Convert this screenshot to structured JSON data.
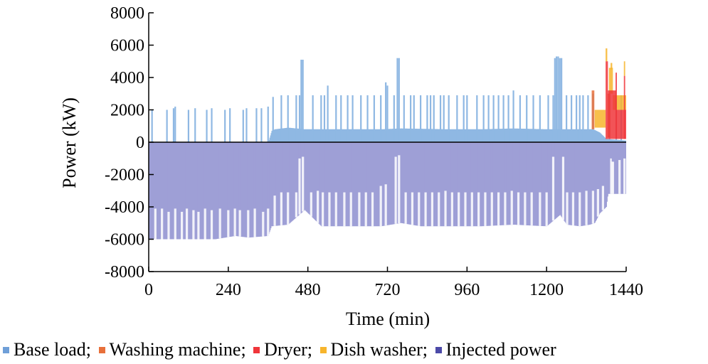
{
  "chart_data": {
    "type": "bar",
    "xlabel": "Time (min)",
    "ylabel": "Power (kW)",
    "xlim": [
      0,
      1440
    ],
    "ylim": [
      -8000,
      8000
    ],
    "xticks": [
      "0",
      "240",
      "480",
      "720",
      "960",
      "1200",
      "1440"
    ],
    "yticks": [
      "8000",
      "6000",
      "4000",
      "2000",
      "0",
      "-2000",
      "-4000",
      "-6000",
      "-8000"
    ],
    "legend": {
      "placement": "bottom",
      "separator": ";"
    },
    "colors": {
      "Base load": "#8fb8e3",
      "Washing machine": "#e8703a",
      "Dryer": "#f0353a",
      "Dish washer": "#f7b52c",
      "Injected power": "#9e9fd6"
    },
    "legend_swatch_colors": {
      "Base load": "#6f9fd8",
      "Washing machine": "#e8703a",
      "Dryer": "#f0353a",
      "Dish washer": "#f7b52c",
      "Injected power": "#4c4aa8"
    },
    "series": [
      {
        "name": "Base load",
        "base": [
          [
            0,
            0
          ],
          [
            360,
            0
          ],
          [
            370,
            700
          ],
          [
            380,
            800
          ],
          [
            420,
            900
          ],
          [
            470,
            800
          ],
          [
            700,
            800
          ],
          [
            760,
            850
          ],
          [
            900,
            800
          ],
          [
            1000,
            800
          ],
          [
            1100,
            850
          ],
          [
            1200,
            800
          ],
          [
            1300,
            800
          ],
          [
            1340,
            800
          ],
          [
            1360,
            600
          ],
          [
            1380,
            200
          ],
          [
            1440,
            100
          ]
        ],
        "spikes": [
          [
            10,
            2000
          ],
          [
            55,
            2000
          ],
          [
            75,
            2100
          ],
          [
            80,
            2200
          ],
          [
            120,
            2000
          ],
          [
            140,
            2100
          ],
          [
            175,
            2000
          ],
          [
            190,
            2100
          ],
          [
            230,
            2000
          ],
          [
            245,
            2100
          ],
          [
            285,
            2000
          ],
          [
            295,
            2100
          ],
          [
            325,
            2100
          ],
          [
            340,
            2100
          ],
          [
            360,
            2200
          ],
          [
            375,
            2800
          ],
          [
            400,
            2900
          ],
          [
            420,
            2900
          ],
          [
            445,
            2900
          ],
          [
            455,
            2900
          ],
          [
            460,
            5100
          ],
          [
            465,
            5100
          ],
          [
            495,
            2900
          ],
          [
            520,
            2900
          ],
          [
            530,
            2900
          ],
          [
            540,
            3500
          ],
          [
            565,
            2900
          ],
          [
            580,
            2900
          ],
          [
            600,
            2900
          ],
          [
            615,
            2900
          ],
          [
            640,
            2900
          ],
          [
            660,
            2900
          ],
          [
            680,
            2900
          ],
          [
            700,
            2900
          ],
          [
            715,
            3700
          ],
          [
            720,
            3500
          ],
          [
            740,
            2900
          ],
          [
            750,
            5200
          ],
          [
            755,
            5200
          ],
          [
            770,
            2900
          ],
          [
            790,
            2900
          ],
          [
            800,
            2900
          ],
          [
            820,
            2900
          ],
          [
            840,
            2900
          ],
          [
            850,
            2900
          ],
          [
            860,
            2900
          ],
          [
            880,
            2900
          ],
          [
            890,
            2900
          ],
          [
            905,
            2900
          ],
          [
            930,
            2900
          ],
          [
            950,
            2900
          ],
          [
            960,
            2900
          ],
          [
            990,
            2900
          ],
          [
            1010,
            2900
          ],
          [
            1025,
            2900
          ],
          [
            1040,
            2900
          ],
          [
            1055,
            2900
          ],
          [
            1070,
            2900
          ],
          [
            1085,
            2900
          ],
          [
            1100,
            3200
          ],
          [
            1120,
            2900
          ],
          [
            1140,
            2900
          ],
          [
            1160,
            2900
          ],
          [
            1180,
            2900
          ],
          [
            1205,
            2900
          ],
          [
            1220,
            2900
          ],
          [
            1225,
            5200
          ],
          [
            1230,
            5300
          ],
          [
            1235,
            5300
          ],
          [
            1240,
            5200
          ],
          [
            1245,
            5200
          ],
          [
            1260,
            2900
          ],
          [
            1275,
            2900
          ],
          [
            1290,
            2900
          ],
          [
            1300,
            2900
          ],
          [
            1310,
            2900
          ],
          [
            1325,
            2900
          ],
          [
            1340,
            3000
          ],
          [
            1390,
            3100
          ],
          [
            1410,
            2900
          ],
          [
            1425,
            2900
          ]
        ]
      },
      {
        "name": "Washing machine",
        "segments": [
          [
            1336,
            1344,
            800,
            3200
          ],
          [
            1384,
            1392,
            300,
            3000
          ]
        ]
      },
      {
        "name": "Dryer",
        "segments": [
          [
            1378,
            1385,
            200,
            5000
          ],
          [
            1385,
            1410,
            200,
            3200
          ],
          [
            1410,
            1440,
            200,
            2000
          ],
          [
            1408,
            1412,
            200,
            4300
          ],
          [
            1433,
            1437,
            200,
            4100
          ]
        ]
      },
      {
        "name": "Dish washer",
        "segments": [
          [
            1345,
            1378,
            900,
            2000
          ],
          [
            1378,
            1383,
            5000,
            5800
          ],
          [
            1388,
            1400,
            3000,
            4600
          ],
          [
            1400,
            1440,
            2000,
            2900
          ],
          [
            1433,
            1437,
            4100,
            5000
          ],
          [
            1393,
            1398,
            4500,
            4900
          ]
        ]
      },
      {
        "name": "Injected power",
        "base": [
          [
            0,
            -6000
          ],
          [
            140,
            -6000
          ],
          [
            200,
            -6000
          ],
          [
            260,
            -5800
          ],
          [
            300,
            -5900
          ],
          [
            360,
            -5800
          ],
          [
            370,
            -5200
          ],
          [
            420,
            -5100
          ],
          [
            470,
            -4200
          ],
          [
            520,
            -5200
          ],
          [
            700,
            -5200
          ],
          [
            760,
            -5000
          ],
          [
            820,
            -5200
          ],
          [
            1000,
            -5200
          ],
          [
            1100,
            -5100
          ],
          [
            1200,
            -5200
          ],
          [
            1240,
            -4500
          ],
          [
            1260,
            -5100
          ],
          [
            1300,
            -5200
          ],
          [
            1330,
            -5100
          ],
          [
            1345,
            -5000
          ],
          [
            1360,
            -4400
          ],
          [
            1380,
            -4000
          ],
          [
            1385,
            -3200
          ],
          [
            1440,
            -3200
          ]
        ],
        "spikes": [
          [
            20,
            -4100
          ],
          [
            40,
            -4100
          ],
          [
            60,
            -4300
          ],
          [
            80,
            -4100
          ],
          [
            100,
            -4300
          ],
          [
            115,
            -4100
          ],
          [
            135,
            -4200
          ],
          [
            150,
            -4300
          ],
          [
            170,
            -4100
          ],
          [
            190,
            -4200
          ],
          [
            215,
            -4100
          ],
          [
            240,
            -4200
          ],
          [
            260,
            -4100
          ],
          [
            275,
            -4200
          ],
          [
            300,
            -4200
          ],
          [
            320,
            -4100
          ],
          [
            345,
            -4300
          ],
          [
            360,
            -4100
          ],
          [
            380,
            -3300
          ],
          [
            400,
            -3100
          ],
          [
            420,
            -3100
          ],
          [
            445,
            -3100
          ],
          [
            455,
            -1000
          ],
          [
            465,
            -900
          ],
          [
            490,
            -3100
          ],
          [
            510,
            -3000
          ],
          [
            525,
            -3100
          ],
          [
            545,
            -3100
          ],
          [
            565,
            -3100
          ],
          [
            590,
            -3100
          ],
          [
            610,
            -3100
          ],
          [
            635,
            -3100
          ],
          [
            655,
            -3100
          ],
          [
            675,
            -3100
          ],
          [
            700,
            -2700
          ],
          [
            715,
            -2600
          ],
          [
            745,
            -900
          ],
          [
            755,
            -800
          ],
          [
            775,
            -3100
          ],
          [
            795,
            -3100
          ],
          [
            815,
            -3100
          ],
          [
            835,
            -3100
          ],
          [
            855,
            -3100
          ],
          [
            875,
            -3100
          ],
          [
            895,
            -3000
          ],
          [
            915,
            -3100
          ],
          [
            935,
            -3100
          ],
          [
            955,
            -3100
          ],
          [
            975,
            -3100
          ],
          [
            995,
            -3100
          ],
          [
            1015,
            -3100
          ],
          [
            1035,
            -3100
          ],
          [
            1055,
            -3100
          ],
          [
            1075,
            -3100
          ],
          [
            1095,
            -3000
          ],
          [
            1115,
            -3100
          ],
          [
            1135,
            -3100
          ],
          [
            1155,
            -3100
          ],
          [
            1180,
            -3100
          ],
          [
            1200,
            -3100
          ],
          [
            1220,
            -900
          ],
          [
            1250,
            -900
          ],
          [
            1262,
            -3100
          ],
          [
            1280,
            -3100
          ],
          [
            1300,
            -3100
          ],
          [
            1320,
            -3000
          ],
          [
            1340,
            -3000
          ],
          [
            1355,
            -2900
          ],
          [
            1370,
            -2700
          ],
          [
            1395,
            -1000
          ],
          [
            1400,
            -1200
          ],
          [
            1420,
            -1100
          ],
          [
            1435,
            -1000
          ]
        ]
      }
    ]
  }
}
